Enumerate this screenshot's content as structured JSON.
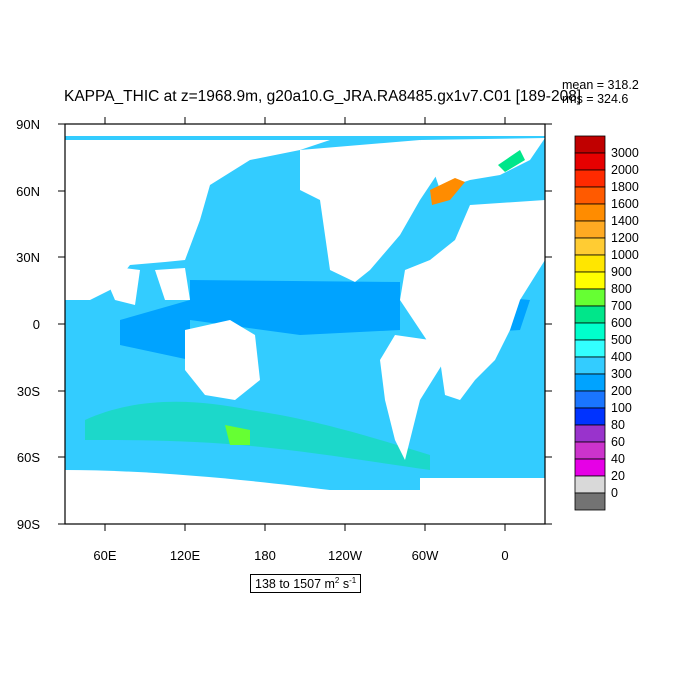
{
  "title": "KAPPA_THIC at z=1968.9m, g20a10.G_JRA.RA8485.gx1v7.C01 [189-208]",
  "stats": {
    "mean": "mean = 318.2",
    "rms": "rms = 324.6"
  },
  "lat_labels": [
    "90N",
    "60N",
    "30N",
    "0",
    "30S",
    "60S",
    "90S"
  ],
  "lon_labels": [
    "60E",
    "120E",
    "180",
    "120W",
    "60W",
    "0"
  ],
  "colorbar": {
    "labels": [
      "3000",
      "2000",
      "1800",
      "1600",
      "1400",
      "1200",
      "1000",
      "900",
      "800",
      "700",
      "600",
      "500",
      "400",
      "300",
      "200",
      "100",
      "80",
      "60",
      "40",
      "20",
      "0"
    ],
    "colors": [
      "#c00000",
      "#e60000",
      "#ff2a00",
      "#ff5a00",
      "#ff8c00",
      "#ffaa22",
      "#ffcc33",
      "#ffe600",
      "#ffff00",
      "#66ff33",
      "#00e68a",
      "#00ffcc",
      "#33ffff",
      "#33ccff",
      "#00a3ff",
      "#1a75ff",
      "#0033ff",
      "#9933cc",
      "#cc33cc",
      "#e600e6",
      "#d9d9d9",
      "#737373"
    ]
  },
  "range_label": {
    "text": "138 to 1507 m",
    "sup1": "2",
    "unit2": " s",
    "sup2": "-1"
  },
  "colors": {
    "ocean_main": "#33ccff",
    "ocean_deep": "#00a3ff",
    "land": "#ffffff",
    "frame": "#000000"
  }
}
